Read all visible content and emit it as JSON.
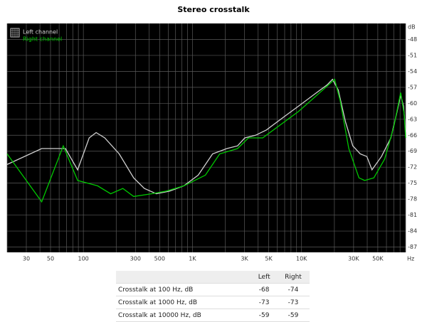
{
  "chart_data": {
    "type": "line",
    "title": "Stereo crosstalk",
    "x_label": "Hz",
    "y_label": "dB",
    "log_x": true,
    "xlim": [
      20,
      90000
    ],
    "ylim": [
      -88,
      -45
    ],
    "xticks": [
      30,
      50,
      100,
      300,
      500,
      {
        "value": 1000,
        "label": "1K"
      },
      {
        "value": 3000,
        "label": "3K"
      },
      {
        "value": 5000,
        "label": "5K"
      },
      {
        "value": 10000,
        "label": "10K"
      },
      {
        "value": 30000,
        "label": "30K"
      },
      {
        "value": 50000,
        "label": "50K"
      }
    ],
    "xgrid": [
      20,
      40,
      60,
      70,
      80,
      90,
      200,
      400,
      600,
      700,
      800,
      900,
      2000,
      4000,
      6000,
      7000,
      8000,
      9000,
      20000,
      40000,
      60000,
      70000,
      80000,
      90000
    ],
    "yticks": [
      -48,
      -51,
      -54,
      -57,
      -60,
      -63,
      -66,
      -69,
      -72,
      -75,
      -78,
      -81,
      -84,
      -87
    ],
    "grid": true,
    "legend": "upper left",
    "series": [
      {
        "name": "Left channel",
        "color": "#d0d0d0",
        "x": [
          20,
          41.5,
          68.5,
          88.6,
          113,
          131,
          157,
          213,
          289,
          362,
          467,
          617,
          834,
          1129,
          1528,
          2064,
          2590,
          3020,
          3790,
          4770,
          6950,
          9420,
          12730,
          17250,
          19200,
          21700,
          25300,
          29500,
          34500,
          39700,
          44200,
          54000,
          65800,
          74300,
          81000,
          86000,
          90000
        ],
        "values": [
          -71.5,
          -68.5,
          -68.5,
          -72.5,
          -66.5,
          -65.5,
          -66.5,
          -69.5,
          -74,
          -76,
          -77,
          -76.5,
          -75.5,
          -73.5,
          -69.5,
          -68.5,
          -68,
          -66.5,
          -66,
          -65,
          -62.5,
          -60.5,
          -58.5,
          -56.5,
          -55.5,
          -57.5,
          -63.5,
          -68,
          -69.5,
          -70,
          -72.5,
          -70,
          -66.5,
          -62,
          -58.5,
          -60.5,
          -65.5
        ]
      },
      {
        "name": "Right channel",
        "color": "#00c800",
        "x": [
          20,
          41.5,
          65.4,
          88.6,
          135,
          178,
          230,
          289,
          421,
          575,
          834,
          1313,
          1777,
          2590,
          3260,
          4410,
          5970,
          9420,
          14700,
          20100,
          22600,
          27100,
          33600,
          37900,
          46000,
          57700,
          69900,
          81000,
          87200,
          90000
        ],
        "values": [
          -69.5,
          -78.5,
          -68,
          -74.5,
          -75.5,
          -77,
          -76,
          -77.5,
          -77,
          -76.5,
          -75.5,
          -73.5,
          -69.5,
          -68.5,
          -66.5,
          -66.5,
          -64.5,
          -61.5,
          -58,
          -55.5,
          -59.5,
          -68.5,
          -74,
          -74.5,
          -74,
          -70.5,
          -64.5,
          -58,
          -62,
          -66.5
        ]
      }
    ]
  },
  "table": {
    "header": [
      "Left",
      "Right"
    ],
    "rows": [
      [
        "Crosstalk at 100 Hz, dB",
        -68,
        -74
      ],
      [
        "Crosstalk at 1000 Hz, dB",
        -73,
        -73
      ],
      [
        "Crosstalk at 10000 Hz, dB",
        -59,
        -59
      ]
    ]
  }
}
